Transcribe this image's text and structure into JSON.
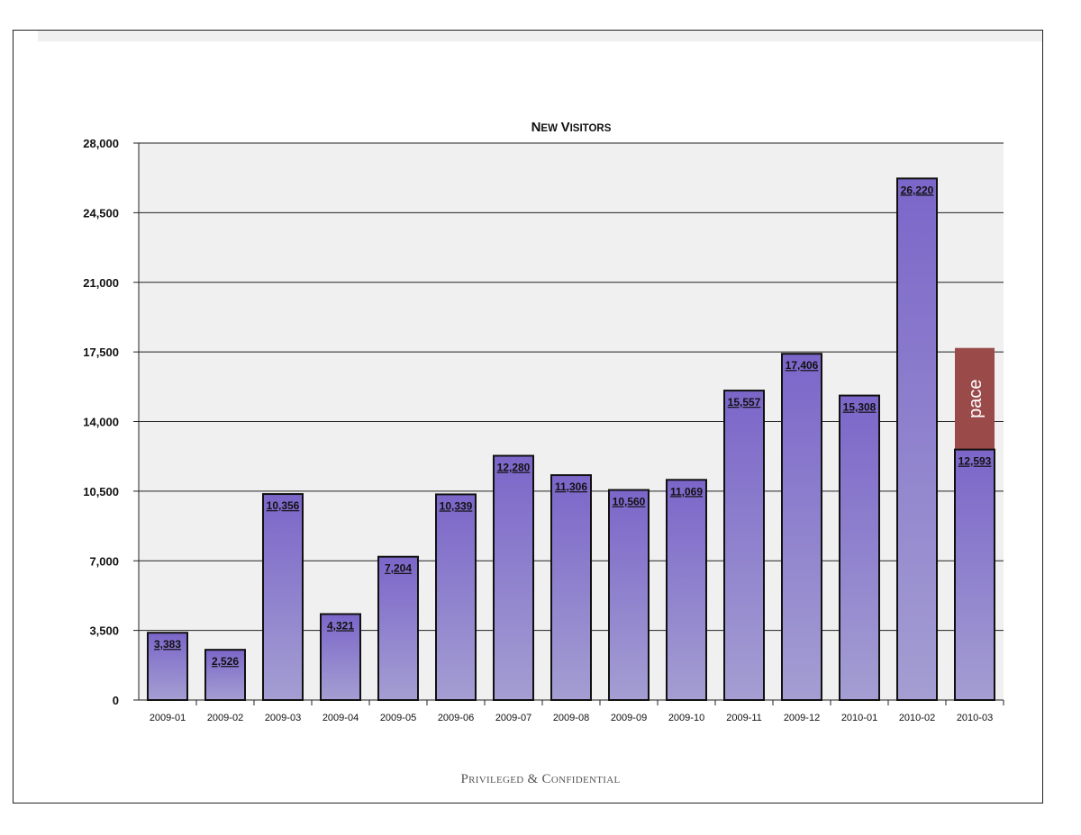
{
  "chart_data": {
    "type": "bar",
    "title": "New Visitors",
    "categories": [
      "2009-01",
      "2009-02",
      "2009-03",
      "2009-04",
      "2009-05",
      "2009-06",
      "2009-07",
      "2009-08",
      "2009-09",
      "2009-10",
      "2009-11",
      "2009-12",
      "2010-01",
      "2010-02",
      "2010-03"
    ],
    "values": [
      3383,
      2526,
      10356,
      4321,
      7204,
      10339,
      12280,
      11306,
      10560,
      11069,
      15557,
      17406,
      15308,
      26220,
      12593
    ],
    "value_labels": [
      "3,383",
      "2,526",
      "10,356",
      "4,321",
      "7,204",
      "10,339",
      "12,280",
      "11,306",
      "10,560",
      "11,069",
      "15,557",
      "17,406",
      "15,308",
      "26,220",
      "12,593"
    ],
    "yticks": [
      0,
      3500,
      7000,
      10500,
      14000,
      17500,
      21000,
      24500,
      28000
    ],
    "ytick_labels": [
      "0",
      "3,500",
      "7,000",
      "10,500",
      "14,000",
      "17,500",
      "21,000",
      "24,500",
      "28,000"
    ],
    "ylim": [
      0,
      28000
    ],
    "grid": true,
    "pace": {
      "category": "2010-03",
      "label": "pace",
      "value_top": 17700,
      "color": "#9b4a4a"
    },
    "bar_color_top": "#7b66c9",
    "bar_color_bottom": "#a49ed2",
    "plot_background": "#f0f0f0"
  },
  "footer": {
    "text": "Privileged & Confidential"
  }
}
